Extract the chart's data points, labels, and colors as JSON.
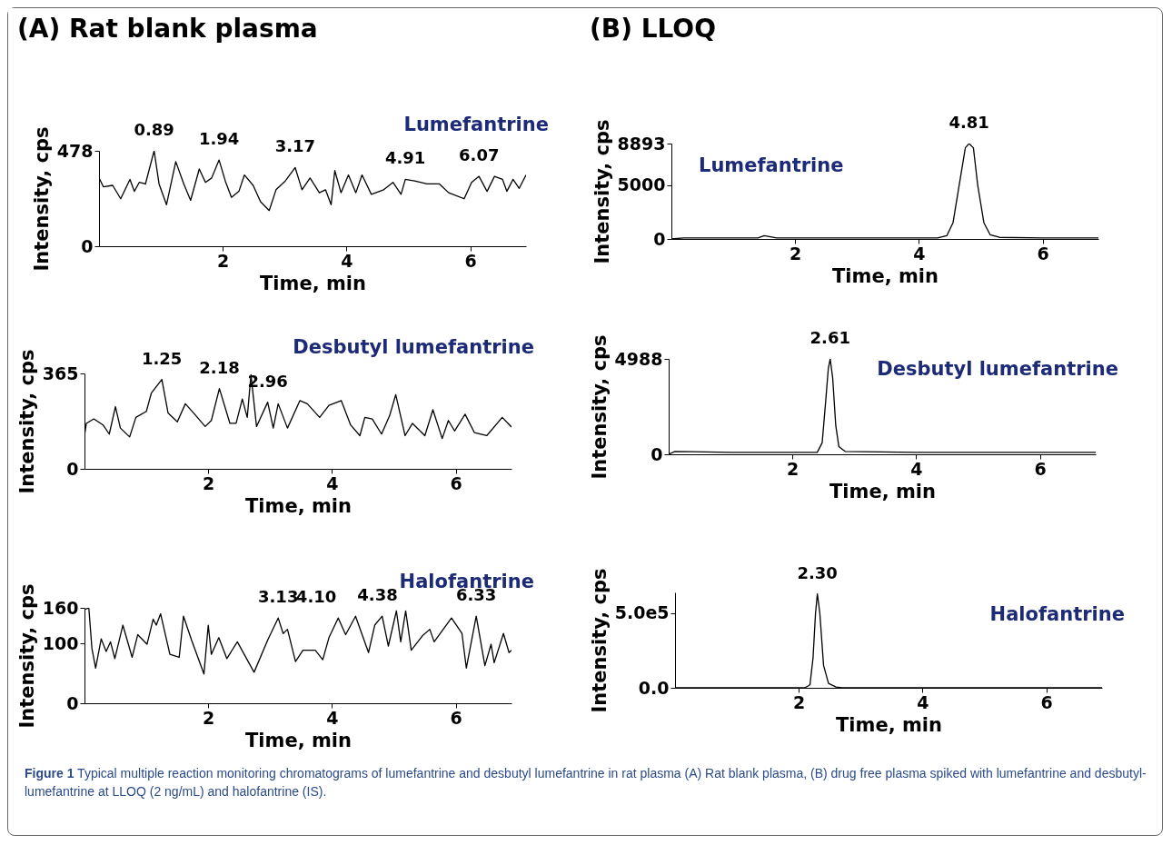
{
  "chart_data": [
    {
      "type": "line",
      "title": "(A) Rat blank plasma",
      "xlabel": "Time, min",
      "ylabel": "Intensity, cps",
      "xlim": [
        0,
        6.9
      ],
      "xticks": [
        2,
        4,
        6
      ],
      "ylim": [
        0,
        478
      ],
      "yticks": [
        0,
        478
      ],
      "x": [
        0,
        0.07,
        0.22,
        0.35,
        0.5,
        0.57,
        0.65,
        0.75,
        0.89,
        0.97,
        1.09,
        1.24,
        1.37,
        1.48,
        1.62,
        1.72,
        1.82,
        1.94,
        2.04,
        2.14,
        2.26,
        2.35,
        2.49,
        2.61,
        2.75,
        2.86,
        3.01,
        3.17,
        3.28,
        3.41,
        3.56,
        3.66,
        3.75,
        3.81,
        3.91,
        4.03,
        4.15,
        4.25,
        4.4,
        4.6,
        4.75,
        4.88,
        4.95,
        5.1,
        5.3,
        5.5,
        5.65,
        5.9,
        6.02,
        6.14,
        6.27,
        6.39,
        6.52,
        6.59,
        6.69,
        6.79,
        6.9
      ],
      "series": [
        {
          "color": "#000000",
          "values": [
            342,
            298,
            305,
            238,
            335,
            275,
            320,
            312,
            478,
            312,
            208,
            424,
            312,
            230,
            387,
            320,
            342,
            432,
            327,
            245,
            275,
            357,
            305,
            223,
            179,
            283,
            327,
            394,
            283,
            342,
            268,
            283,
            208,
            379,
            268,
            357,
            268,
            357,
            260,
            283,
            320,
            260,
            335,
            327,
            312,
            312,
            268,
            238,
            320,
            350,
            275,
            350,
            335,
            275,
            335,
            290,
            357
          ]
        }
      ],
      "annotations": [
        "Lumefantrine",
        {
          "text": "0.89",
          "x": 0.89,
          "y": 478
        },
        {
          "text": "1.94",
          "x": 1.94,
          "y": 432
        },
        {
          "text": "3.17",
          "x": 3.17,
          "y": 394
        },
        {
          "text": "4.91",
          "x": 4.95,
          "y": 335
        },
        {
          "text": "6.07",
          "x": 6.14,
          "y": 350
        },
        "Figure 1 Typical multiple reaction monitoring chromatograms of lumefantrine and desbutyl lumefantrine in rat plasma (A) Rat blank plasma, (B) drug free plasma spiked with lumefantrine and desbutyl-lumefantrine at LLOQ (2 ng/mL) and halofantrine (IS)."
      ]
    },
    {
      "type": "line",
      "xlabel": "Time, min",
      "ylabel": "Intensity, cps",
      "xlim": [
        0,
        6.9
      ],
      "xticks": [
        2,
        4,
        6
      ],
      "ylim": [
        0,
        365
      ],
      "yticks": [
        0,
        365
      ],
      "x": [
        0,
        0.03,
        0.15,
        0.3,
        0.4,
        0.5,
        0.58,
        0.73,
        0.83,
        1.0,
        1.08,
        1.25,
        1.35,
        1.5,
        1.63,
        1.78,
        1.95,
        2.05,
        2.18,
        2.35,
        2.45,
        2.55,
        2.63,
        2.69,
        2.78,
        2.96,
        3.05,
        3.13,
        3.28,
        3.48,
        3.6,
        3.8,
        3.95,
        4.15,
        4.3,
        4.45,
        4.53,
        4.65,
        4.8,
        4.93,
        5.03,
        5.18,
        5.3,
        5.5,
        5.63,
        5.78,
        5.88,
        5.98,
        6.15,
        6.3,
        6.5,
        6.75,
        6.9
      ],
      "series": [
        {
          "color": "#000000",
          "values": [
            127,
            174,
            191,
            168,
            133,
            238,
            156,
            122,
            197,
            220,
            290,
            342,
            214,
            180,
            249,
            209,
            162,
            185,
            307,
            174,
            174,
            267,
            197,
            360,
            162,
            255,
            156,
            249,
            156,
            261,
            249,
            197,
            243,
            261,
            168,
            127,
            197,
            191,
            133,
            203,
            284,
            127,
            174,
            127,
            226,
            116,
            185,
            145,
            209,
            139,
            127,
            197,
            160
          ]
        }
      ],
      "annotations": [
        "Desbutyl lumefantrine",
        {
          "text": "1.25",
          "x": 1.25,
          "y": 342
        },
        {
          "text": "2.18",
          "x": 2.18,
          "y": 307
        },
        {
          "text": "2.96",
          "x": 2.96,
          "y": 255
        }
      ]
    },
    {
      "type": "line",
      "xlabel": "Time, min",
      "ylabel": "Intensity, cps",
      "xlim": [
        0,
        6.9
      ],
      "xticks": [
        2,
        4,
        6
      ],
      "ylim": [
        0,
        160
      ],
      "yticks": [
        0,
        100,
        160
      ],
      "x": [
        0,
        0.07,
        0.12,
        0.18,
        0.27,
        0.35,
        0.42,
        0.49,
        0.62,
        0.77,
        0.86,
        1.01,
        1.11,
        1.16,
        1.23,
        1.38,
        1.53,
        1.6,
        1.73,
        1.93,
        2.0,
        2.05,
        2.17,
        2.3,
        2.47,
        2.74,
        2.96,
        3.13,
        3.21,
        3.28,
        3.41,
        3.53,
        3.73,
        3.85,
        3.95,
        4.1,
        4.22,
        4.38,
        4.59,
        4.69,
        4.81,
        4.91,
        5.04,
        5.11,
        5.19,
        5.28,
        5.46,
        5.58,
        5.65,
        5.93,
        6.1,
        6.17,
        6.33,
        6.47,
        6.57,
        6.62,
        6.77,
        6.86,
        6.9
      ],
      "series": [
        {
          "color": "#000000",
          "values": [
            157,
            160,
            92,
            59,
            108,
            87,
            103,
            75,
            131,
            77,
            115,
            99,
            141,
            131,
            150,
            82,
            77,
            146,
            106,
            49,
            131,
            82,
            110,
            75,
            103,
            52,
            106,
            143,
            117,
            124,
            70,
            89,
            89,
            73,
            110,
            143,
            115,
            146,
            85,
            131,
            146,
            96,
            155,
            103,
            155,
            89,
            113,
            124,
            103,
            143,
            117,
            59,
            146,
            63,
            99,
            68,
            117,
            85,
            89
          ]
        }
      ],
      "annotations": [
        "Halofantrine",
        {
          "text": "3.13",
          "x": 3.13,
          "y": 143
        },
        {
          "text": "4.10",
          "x": 4.1,
          "y": 143
        },
        {
          "text": "4.38",
          "x": 4.38,
          "y": 146
        },
        {
          "text": "6.33",
          "x": 6.33,
          "y": 146
        }
      ]
    },
    {
      "type": "line",
      "title": "(B) LLOQ",
      "xlabel": "Time, min",
      "ylabel": "Intensity, cps",
      "xlim": [
        0,
        6.9
      ],
      "xticks": [
        2,
        4,
        6
      ],
      "ylim": [
        0,
        8893
      ],
      "yticks": [
        0,
        5000,
        8893
      ],
      "x": [
        0,
        0.2,
        1.4,
        1.5,
        1.7,
        3.0,
        4.3,
        4.45,
        4.55,
        4.65,
        4.75,
        4.81,
        4.88,
        4.95,
        5.05,
        5.15,
        5.3,
        6.0,
        6.9
      ],
      "series": [
        {
          "color": "#000000",
          "values": [
            0,
            100,
            100,
            300,
            100,
            100,
            100,
            300,
            1500,
            5000,
            8500,
            8893,
            8500,
            5000,
            1500,
            400,
            150,
            100,
            100
          ]
        }
      ],
      "annotations": [
        "Lumefantrine",
        {
          "text": "4.81",
          "x": 4.81,
          "y": 8893
        }
      ]
    },
    {
      "type": "line",
      "xlabel": "Time, min",
      "ylabel": "Intensity, cps",
      "xlim": [
        0,
        6.9
      ],
      "xticks": [
        2,
        4,
        6
      ],
      "ylim": [
        0,
        4988
      ],
      "yticks": [
        0,
        4988
      ],
      "x": [
        0,
        0.1,
        1.0,
        2.4,
        2.48,
        2.53,
        2.58,
        2.61,
        2.65,
        2.7,
        2.75,
        2.85,
        4.0,
        6.9
      ],
      "series": [
        {
          "color": "#000000",
          "values": [
            0,
            150,
            100,
            100,
            600,
            2500,
            4500,
            4988,
            4000,
            1500,
            400,
            150,
            100,
            100
          ]
        }
      ],
      "annotations": [
        "Desbutyl lumefantrine",
        {
          "text": "2.61",
          "x": 2.61,
          "y": 4988
        }
      ]
    },
    {
      "type": "line",
      "xlabel": "Time, min",
      "ylabel": "Intensity, cps",
      "xlim": [
        0,
        6.9
      ],
      "xticks": [
        2,
        4,
        6
      ],
      "ylim": [
        0,
        640000
      ],
      "yticks": [
        {
          "value": 0,
          "label": "0.0"
        },
        {
          "value": 500000,
          "label": "5.0e5"
        }
      ],
      "x": [
        0,
        2.1,
        2.18,
        2.23,
        2.27,
        2.3,
        2.34,
        2.4,
        2.48,
        2.6,
        2.7,
        6.9
      ],
      "series": [
        {
          "color": "#000000",
          "values": [
            0,
            0,
            20000,
            200000,
            500000,
            630000,
            500000,
            150000,
            30000,
            5000,
            0,
            0
          ]
        }
      ],
      "annotations": [
        "Halofantrine",
        {
          "text": "2.30",
          "x": 2.3,
          "y": 630000
        }
      ]
    }
  ]
}
